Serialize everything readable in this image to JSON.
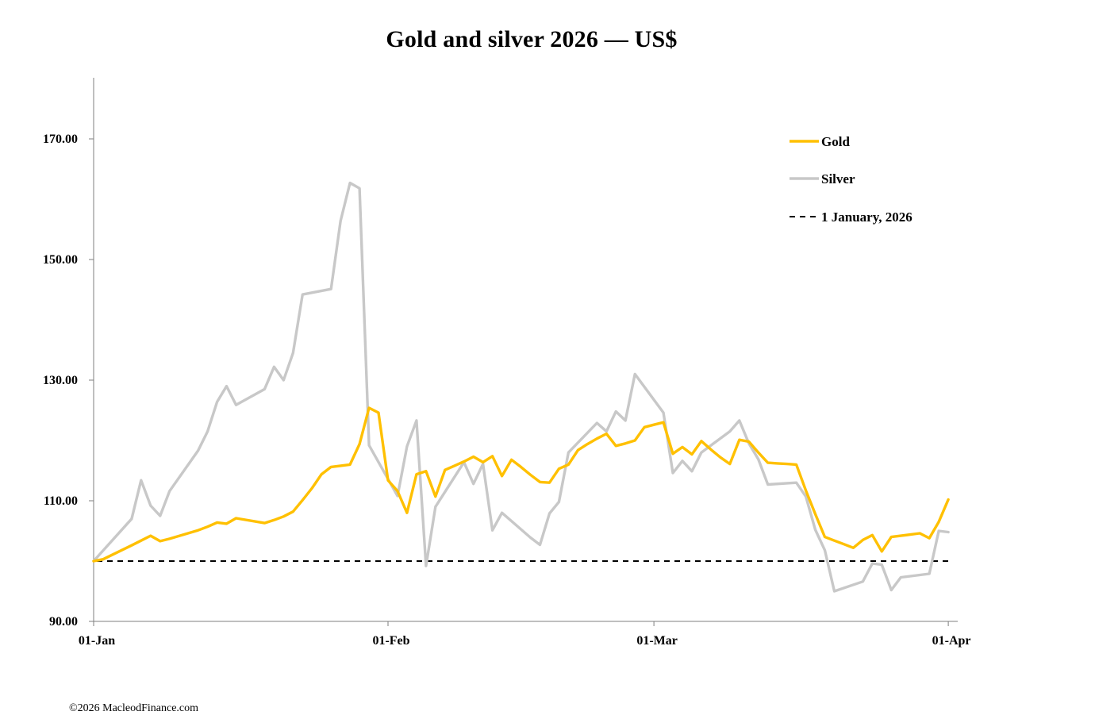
{
  "chart_data": {
    "type": "line",
    "title": "Gold and silver 2026 — US$",
    "xlabel": "",
    "ylabel": "",
    "ylim": [
      90,
      180
    ],
    "yticks": [
      "90.00",
      "110.00",
      "130.00",
      "150.00",
      "170.00"
    ],
    "ytick_values": [
      90,
      110,
      130,
      150,
      170
    ],
    "xlim": [
      "2026-01-01",
      "2026-04-01"
    ],
    "xticks": [
      "01-Jan",
      "01-Feb",
      "01-Mar",
      "01-Apr"
    ],
    "xtick_values": [
      "2026-01-01",
      "2026-02-01",
      "2026-03-01",
      "2026-04-01"
    ],
    "grid": false,
    "legend_position": "top-right",
    "reference_line": {
      "name": "1 January, 2026",
      "value": 100,
      "style": "dashed",
      "color": "#000000"
    },
    "series": [
      {
        "name": "Gold",
        "color": "#FFC000",
        "points": [
          [
            "2026-01-01",
            100.0
          ],
          [
            "2026-01-02",
            100.3
          ],
          [
            "2026-01-05",
            102.6
          ],
          [
            "2026-01-06",
            103.4
          ],
          [
            "2026-01-07",
            104.2
          ],
          [
            "2026-01-08",
            103.3
          ],
          [
            "2026-01-09",
            103.7
          ],
          [
            "2026-01-12",
            105.1
          ],
          [
            "2026-01-13",
            105.7
          ],
          [
            "2026-01-14",
            106.4
          ],
          [
            "2026-01-15",
            106.2
          ],
          [
            "2026-01-16",
            107.1
          ],
          [
            "2026-01-19",
            106.3
          ],
          [
            "2026-01-20",
            106.8
          ],
          [
            "2026-01-21",
            107.4
          ],
          [
            "2026-01-22",
            108.2
          ],
          [
            "2026-01-23",
            110.1
          ],
          [
            "2026-01-24",
            112.1
          ],
          [
            "2026-01-25",
            114.4
          ],
          [
            "2026-01-26",
            115.6
          ],
          [
            "2026-01-27",
            115.8
          ],
          [
            "2026-01-28",
            116.0
          ],
          [
            "2026-01-29",
            119.4
          ],
          [
            "2026-01-30",
            125.4
          ],
          [
            "2026-01-31",
            124.6
          ],
          [
            "2026-02-01",
            113.4
          ],
          [
            "2026-02-02",
            111.6
          ],
          [
            "2026-02-03",
            108.0
          ],
          [
            "2026-02-04",
            114.4
          ],
          [
            "2026-02-05",
            114.9
          ],
          [
            "2026-02-06",
            110.7
          ],
          [
            "2026-02-07",
            115.1
          ],
          [
            "2026-02-08",
            115.8
          ],
          [
            "2026-02-09",
            116.5
          ],
          [
            "2026-02-10",
            117.3
          ],
          [
            "2026-02-11",
            116.4
          ],
          [
            "2026-02-12",
            117.4
          ],
          [
            "2026-02-13",
            114.1
          ],
          [
            "2026-02-14",
            116.8
          ],
          [
            "2026-02-15",
            115.6
          ],
          [
            "2026-02-16",
            114.3
          ],
          [
            "2026-02-17",
            113.1
          ],
          [
            "2026-02-18",
            113.0
          ],
          [
            "2026-02-19",
            115.3
          ],
          [
            "2026-02-20",
            116.0
          ],
          [
            "2026-02-21",
            118.4
          ],
          [
            "2026-02-22",
            119.4
          ],
          [
            "2026-02-23",
            120.3
          ],
          [
            "2026-02-24",
            121.1
          ],
          [
            "2026-02-25",
            119.1
          ],
          [
            "2026-02-26",
            119.5
          ],
          [
            "2026-02-27",
            120.0
          ],
          [
            "2026-02-28",
            122.2
          ],
          [
            "2026-03-01",
            122.6
          ],
          [
            "2026-03-02",
            123.0
          ],
          [
            "2026-03-03",
            117.8
          ],
          [
            "2026-03-04",
            118.9
          ],
          [
            "2026-03-05",
            117.7
          ],
          [
            "2026-03-06",
            119.9
          ],
          [
            "2026-03-07",
            118.5
          ],
          [
            "2026-03-08",
            117.2
          ],
          [
            "2026-03-09",
            116.1
          ],
          [
            "2026-03-10",
            120.1
          ],
          [
            "2026-03-11",
            119.8
          ],
          [
            "2026-03-12",
            118.0
          ],
          [
            "2026-03-13",
            116.3
          ],
          [
            "2026-03-14",
            116.2
          ],
          [
            "2026-03-15",
            116.1
          ],
          [
            "2026-03-16",
            116.0
          ],
          [
            "2026-03-17",
            111.7
          ],
          [
            "2026-03-18",
            107.8
          ],
          [
            "2026-03-19",
            104.0
          ],
          [
            "2026-03-20",
            103.4
          ],
          [
            "2026-03-21",
            102.8
          ],
          [
            "2026-03-22",
            102.2
          ],
          [
            "2026-03-23",
            103.5
          ],
          [
            "2026-03-24",
            104.3
          ],
          [
            "2026-03-25",
            101.6
          ],
          [
            "2026-03-26",
            104.0
          ],
          [
            "2026-03-27",
            104.2
          ],
          [
            "2026-03-28",
            104.4
          ],
          [
            "2026-03-29",
            104.6
          ],
          [
            "2026-03-30",
            103.8
          ],
          [
            "2026-03-31",
            106.5
          ],
          [
            "2026-04-01",
            110.2
          ]
        ]
      },
      {
        "name": "Silver",
        "color": "#C8C8C8",
        "points": [
          [
            "2026-01-01",
            100.0
          ],
          [
            "2026-01-05",
            107.0
          ],
          [
            "2026-01-06",
            113.4
          ],
          [
            "2026-01-07",
            109.2
          ],
          [
            "2026-01-08",
            107.5
          ],
          [
            "2026-01-09",
            111.6
          ],
          [
            "2026-01-12",
            118.3
          ],
          [
            "2026-01-13",
            121.5
          ],
          [
            "2026-01-14",
            126.4
          ],
          [
            "2026-01-15",
            129.0
          ],
          [
            "2026-01-16",
            125.9
          ],
          [
            "2026-01-19",
            128.5
          ],
          [
            "2026-01-20",
            132.2
          ],
          [
            "2026-01-21",
            130.0
          ],
          [
            "2026-01-22",
            134.5
          ],
          [
            "2026-01-23",
            144.2
          ],
          [
            "2026-01-26",
            145.1
          ],
          [
            "2026-01-27",
            156.4
          ],
          [
            "2026-01-28",
            162.7
          ],
          [
            "2026-01-29",
            161.8
          ],
          [
            "2026-01-30",
            119.2
          ],
          [
            "2026-02-02",
            110.8
          ],
          [
            "2026-02-03",
            119.0
          ],
          [
            "2026-02-04",
            123.3
          ],
          [
            "2026-02-05",
            99.2
          ],
          [
            "2026-02-06",
            109.0
          ],
          [
            "2026-02-09",
            116.4
          ],
          [
            "2026-02-10",
            112.8
          ],
          [
            "2026-02-11",
            116.1
          ],
          [
            "2026-02-12",
            105.1
          ],
          [
            "2026-02-13",
            108.0
          ],
          [
            "2026-02-16",
            103.9
          ],
          [
            "2026-02-17",
            102.7
          ],
          [
            "2026-02-18",
            107.9
          ],
          [
            "2026-02-19",
            109.8
          ],
          [
            "2026-02-20",
            118.0
          ],
          [
            "2026-02-23",
            122.9
          ],
          [
            "2026-02-24",
            121.5
          ],
          [
            "2026-02-25",
            124.8
          ],
          [
            "2026-02-26",
            123.3
          ],
          [
            "2026-02-27",
            131.0
          ],
          [
            "2026-03-02",
            124.6
          ],
          [
            "2026-03-03",
            114.6
          ],
          [
            "2026-03-04",
            116.6
          ],
          [
            "2026-03-05",
            114.9
          ],
          [
            "2026-03-06",
            118.0
          ],
          [
            "2026-03-09",
            121.5
          ],
          [
            "2026-03-10",
            123.3
          ],
          [
            "2026-03-11",
            119.5
          ],
          [
            "2026-03-12",
            116.9
          ],
          [
            "2026-03-13",
            112.7
          ],
          [
            "2026-03-16",
            113.0
          ],
          [
            "2026-03-17",
            110.7
          ],
          [
            "2026-03-18",
            105.2
          ],
          [
            "2026-03-19",
            101.8
          ],
          [
            "2026-03-20",
            95.0
          ],
          [
            "2026-03-23",
            96.6
          ],
          [
            "2026-03-24",
            99.6
          ],
          [
            "2026-03-25",
            99.4
          ],
          [
            "2026-03-26",
            95.2
          ],
          [
            "2026-03-27",
            97.3
          ],
          [
            "2026-03-30",
            97.9
          ],
          [
            "2026-03-31",
            105.0
          ],
          [
            "2026-04-01",
            104.8
          ]
        ]
      }
    ]
  },
  "footer": {
    "copyright": "©2026 MacleodFinance.com"
  }
}
